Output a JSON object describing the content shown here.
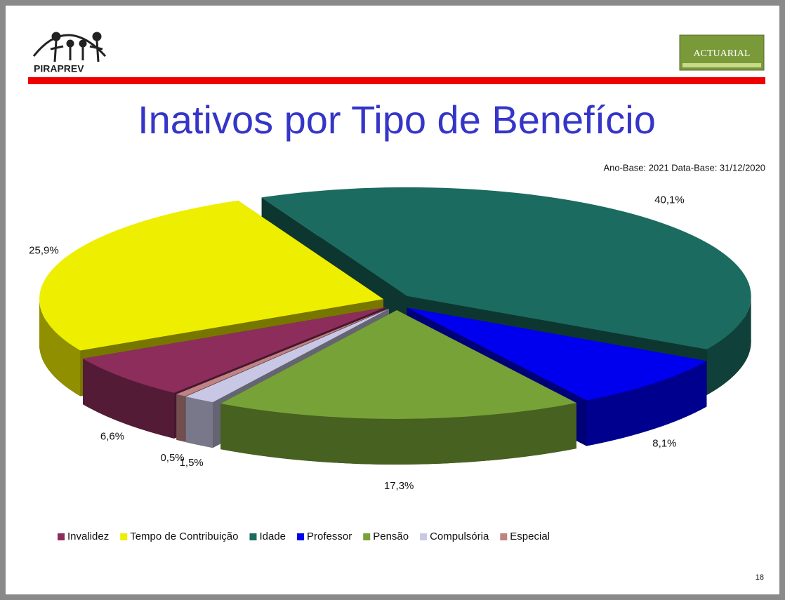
{
  "header": {
    "logo_left": "PIRAPREV",
    "logo_right": "ACTUARIAL"
  },
  "chart_data": {
    "type": "pie",
    "title": "Inativos por Tipo de Benefício",
    "subtitle": "Ano-Base: 2021 Data-Base: 31/12/2020",
    "categories": [
      "Invalidez",
      "Tempo de Contribuição",
      "Idade",
      "Professor",
      "Pensão",
      "Compulsória",
      "Especial"
    ],
    "values": [
      6.6,
      25.9,
      40.1,
      8.1,
      17.3,
      1.5,
      0.5
    ],
    "value_labels": [
      "6,6%",
      "25,9%",
      "40,1%",
      "8,1%",
      "17,3%",
      "1,5%",
      "0,5%"
    ],
    "colors": [
      "#8c2d5c",
      "#eeee00",
      "#1b6b60",
      "#0000ee",
      "#77a237",
      "#c8c8e6",
      "#c08282"
    ],
    "legend": "bottom",
    "three_d": true
  },
  "page_number": "18"
}
